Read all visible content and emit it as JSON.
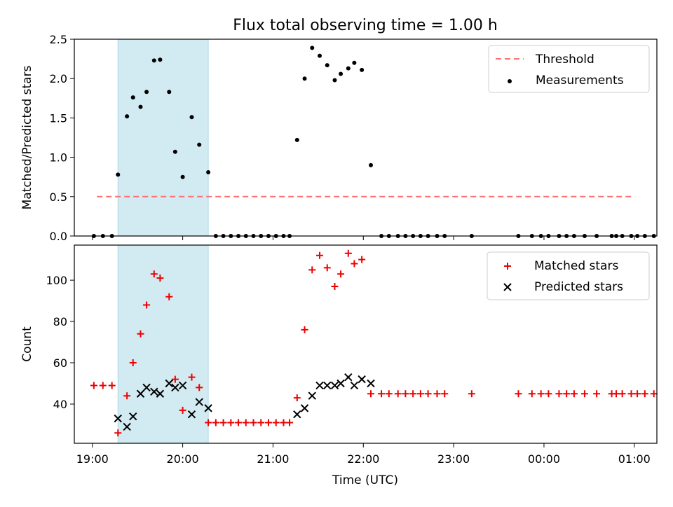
{
  "title": "Flux total observing time = 1.00 h",
  "xlabel": "Time (UTC)",
  "x_ticks": [
    "19:00",
    "20:00",
    "21:00",
    "22:00",
    "23:00",
    "00:00",
    "01:00"
  ],
  "colors": {
    "threshold": "#ff7070",
    "measurements": "#000000",
    "matched": "#ee0000",
    "predicted": "#000000",
    "highlight": "#add8e6"
  },
  "chart_data": [
    {
      "type": "scatter",
      "ylabel": "Matched/Predicted stars",
      "ylim": [
        0,
        2.5
      ],
      "y_ticks": [
        "0.0",
        "0.5",
        "1.0",
        "1.5",
        "2.0",
        "2.5"
      ],
      "x_range": [
        "18:48",
        "01:15"
      ],
      "highlight_span": [
        "19:17",
        "20:17"
      ],
      "legend_position": "top-right",
      "threshold": {
        "name": "Threshold",
        "value": 0.5,
        "x": [
          "19:03",
          "00:58"
        ]
      },
      "series": [
        {
          "name": "Measurements",
          "points": [
            [
              "19:01",
              0.0
            ],
            [
              "19:07",
              0.0
            ],
            [
              "19:13",
              0.0
            ],
            [
              "19:17",
              0.78
            ],
            [
              "19:23",
              1.52
            ],
            [
              "19:27",
              1.76
            ],
            [
              "19:32",
              1.64
            ],
            [
              "19:36",
              1.83
            ],
            [
              "19:41",
              2.23
            ],
            [
              "19:45",
              2.24
            ],
            [
              "19:51",
              1.83
            ],
            [
              "19:55",
              1.07
            ],
            [
              "20:00",
              0.75
            ],
            [
              "20:06",
              1.51
            ],
            [
              "20:11",
              1.16
            ],
            [
              "20:17",
              0.81
            ],
            [
              "20:22",
              0.0
            ],
            [
              "20:27",
              0.0
            ],
            [
              "20:32",
              0.0
            ],
            [
              "20:37",
              0.0
            ],
            [
              "20:42",
              0.0
            ],
            [
              "20:47",
              0.0
            ],
            [
              "20:52",
              0.0
            ],
            [
              "20:57",
              0.0
            ],
            [
              "21:02",
              0.0
            ],
            [
              "21:07",
              0.0
            ],
            [
              "21:11",
              0.0
            ],
            [
              "21:16",
              1.22
            ],
            [
              "21:21",
              2.0
            ],
            [
              "21:26",
              2.39
            ],
            [
              "21:31",
              2.29
            ],
            [
              "21:36",
              2.17
            ],
            [
              "21:41",
              1.98
            ],
            [
              "21:45",
              2.06
            ],
            [
              "21:50",
              2.13
            ],
            [
              "21:54",
              2.2
            ],
            [
              "21:59",
              2.11
            ],
            [
              "22:05",
              0.9
            ],
            [
              "22:12",
              0.0
            ],
            [
              "22:17",
              0.0
            ],
            [
              "22:23",
              0.0
            ],
            [
              "22:28",
              0.0
            ],
            [
              "22:33",
              0.0
            ],
            [
              "22:38",
              0.0
            ],
            [
              "22:43",
              0.0
            ],
            [
              "22:49",
              0.0
            ],
            [
              "22:54",
              0.0
            ],
            [
              "23:12",
              0.0
            ],
            [
              "23:43",
              0.0
            ],
            [
              "23:52",
              0.0
            ],
            [
              "23:58",
              0.0
            ],
            [
              "00:03",
              0.0
            ],
            [
              "00:10",
              0.0
            ],
            [
              "00:15",
              0.0
            ],
            [
              "00:20",
              0.0
            ],
            [
              "00:27",
              0.0
            ],
            [
              "00:35",
              0.0
            ],
            [
              "00:45",
              0.0
            ],
            [
              "00:48",
              0.0
            ],
            [
              "00:52",
              0.0
            ],
            [
              "00:58",
              0.0
            ],
            [
              "01:02",
              0.0
            ],
            [
              "01:07",
              0.0
            ],
            [
              "01:13",
              0.0
            ]
          ]
        }
      ]
    },
    {
      "type": "scatter",
      "ylabel": "Count",
      "ylim": [
        21,
        117
      ],
      "y_ticks": [
        "40",
        "60",
        "80",
        "100"
      ],
      "x_range": [
        "18:48",
        "01:15"
      ],
      "highlight_span": [
        "19:17",
        "20:17"
      ],
      "legend_position": "top-right",
      "series": [
        {
          "name": "Matched stars",
          "marker": "plus",
          "points": [
            [
              "19:01",
              49
            ],
            [
              "19:07",
              49
            ],
            [
              "19:13",
              49
            ],
            [
              "19:17",
              26
            ],
            [
              "19:23",
              44
            ],
            [
              "19:27",
              60
            ],
            [
              "19:32",
              74
            ],
            [
              "19:36",
              88
            ],
            [
              "19:41",
              103
            ],
            [
              "19:45",
              101
            ],
            [
              "19:51",
              92
            ],
            [
              "19:55",
              52
            ],
            [
              "20:00",
              37
            ],
            [
              "20:06",
              53
            ],
            [
              "20:11",
              48
            ],
            [
              "20:17",
              31
            ],
            [
              "20:22",
              31
            ],
            [
              "20:27",
              31
            ],
            [
              "20:32",
              31
            ],
            [
              "20:37",
              31
            ],
            [
              "20:42",
              31
            ],
            [
              "20:47",
              31
            ],
            [
              "20:52",
              31
            ],
            [
              "20:57",
              31
            ],
            [
              "21:02",
              31
            ],
            [
              "21:07",
              31
            ],
            [
              "21:11",
              31
            ],
            [
              "21:16",
              43
            ],
            [
              "21:21",
              76
            ],
            [
              "21:26",
              105
            ],
            [
              "21:31",
              112
            ],
            [
              "21:36",
              106
            ],
            [
              "21:41",
              97
            ],
            [
              "21:45",
              103
            ],
            [
              "21:50",
              113
            ],
            [
              "21:54",
              108
            ],
            [
              "21:59",
              110
            ],
            [
              "22:05",
              45
            ],
            [
              "22:12",
              45
            ],
            [
              "22:17",
              45
            ],
            [
              "22:23",
              45
            ],
            [
              "22:28",
              45
            ],
            [
              "22:33",
              45
            ],
            [
              "22:38",
              45
            ],
            [
              "22:43",
              45
            ],
            [
              "22:49",
              45
            ],
            [
              "22:54",
              45
            ],
            [
              "23:12",
              45
            ],
            [
              "23:43",
              45
            ],
            [
              "23:52",
              45
            ],
            [
              "23:58",
              45
            ],
            [
              "00:03",
              45
            ],
            [
              "00:10",
              45
            ],
            [
              "00:15",
              45
            ],
            [
              "00:20",
              45
            ],
            [
              "00:27",
              45
            ],
            [
              "00:35",
              45
            ],
            [
              "00:45",
              45
            ],
            [
              "00:48",
              45
            ],
            [
              "00:52",
              45
            ],
            [
              "00:58",
              45
            ],
            [
              "01:02",
              45
            ],
            [
              "01:07",
              45
            ],
            [
              "01:13",
              45
            ]
          ]
        },
        {
          "name": "Predicted stars",
          "marker": "x",
          "points": [
            [
              "19:17",
              33
            ],
            [
              "19:23",
              29
            ],
            [
              "19:27",
              34
            ],
            [
              "19:32",
              45
            ],
            [
              "19:36",
              48
            ],
            [
              "19:41",
              46
            ],
            [
              "19:45",
              45
            ],
            [
              "19:51",
              50
            ],
            [
              "19:55",
              48
            ],
            [
              "20:00",
              49
            ],
            [
              "20:06",
              35
            ],
            [
              "20:11",
              41
            ],
            [
              "20:17",
              38
            ],
            [
              "21:16",
              35
            ],
            [
              "21:21",
              38
            ],
            [
              "21:26",
              44
            ],
            [
              "21:31",
              49
            ],
            [
              "21:36",
              49
            ],
            [
              "21:41",
              49
            ],
            [
              "21:45",
              50
            ],
            [
              "21:50",
              53
            ],
            [
              "21:54",
              49
            ],
            [
              "21:59",
              52
            ],
            [
              "22:05",
              50
            ]
          ]
        }
      ]
    }
  ]
}
